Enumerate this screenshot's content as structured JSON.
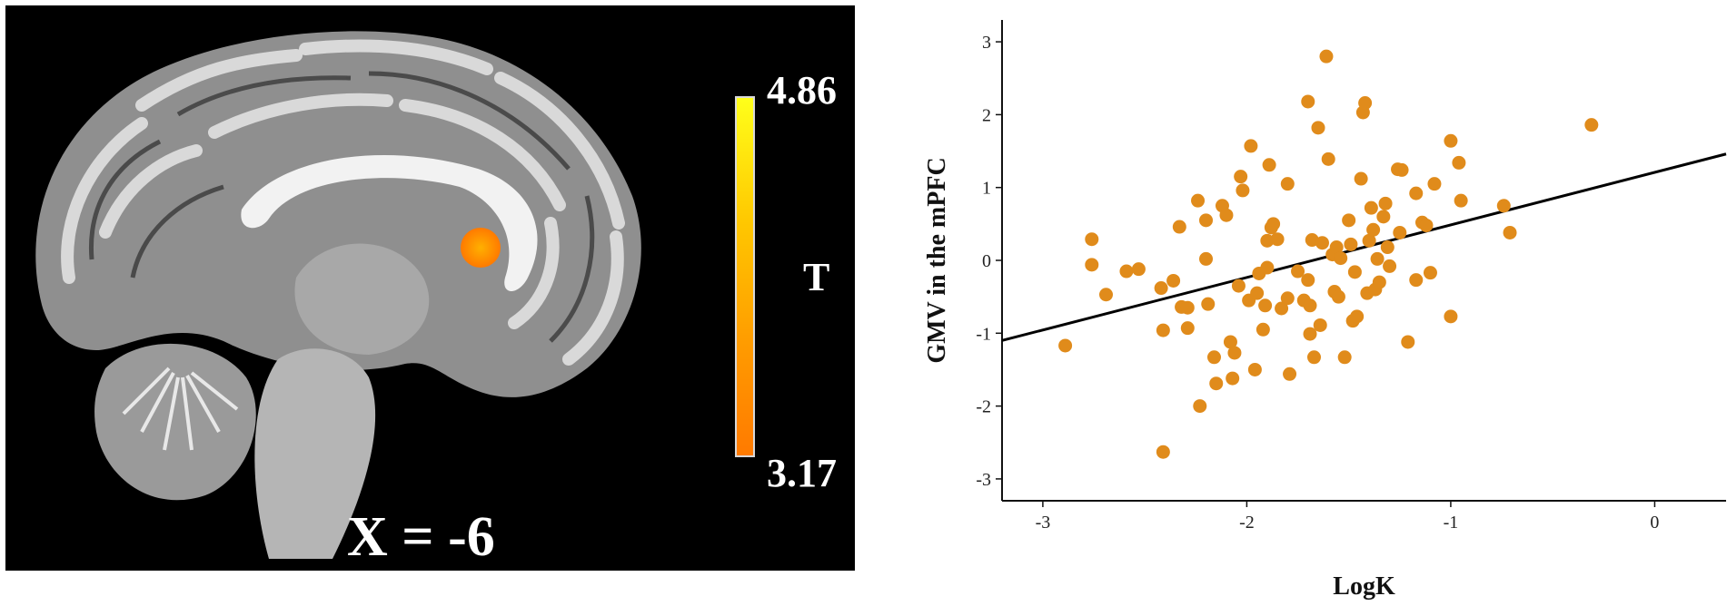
{
  "brain_panel": {
    "colorbar_max": "4.86",
    "colorbar_min": "3.17",
    "colorbar_label": "T",
    "slice_label": "X = -6",
    "colors": {
      "background": "#000000",
      "cluster": "#ff9a00",
      "colorbar_top": "#ffff1a",
      "colorbar_bottom": "#ff7a00"
    }
  },
  "chart_data": {
    "type": "scatter",
    "xlabel": "LogK",
    "ylabel": "GMV in the mPFC",
    "xlim": [
      -3.2,
      0.35
    ],
    "ylim": [
      -3.3,
      3.3
    ],
    "xticks": [
      -3,
      -2,
      -1,
      0
    ],
    "yticks": [
      3,
      2,
      1,
      0,
      -1,
      -2,
      -3
    ],
    "grid": false,
    "point_color": "#e08b1b",
    "fit_line": {
      "x": [
        -3.2,
        0.35
      ],
      "y": [
        -1.1,
        1.46
      ],
      "color": "#000000"
    },
    "points": [
      [
        -2.89,
        -1.17
      ],
      [
        -2.76,
        0.29
      ],
      [
        -2.76,
        -0.06
      ],
      [
        -2.69,
        -0.47
      ],
      [
        -2.59,
        -0.15
      ],
      [
        -2.53,
        -0.12
      ],
      [
        -2.42,
        -0.38
      ],
      [
        -2.41,
        -0.96
      ],
      [
        -2.41,
        -2.63
      ],
      [
        -2.36,
        -0.28
      ],
      [
        -2.33,
        0.46
      ],
      [
        -2.32,
        -0.64
      ],
      [
        -2.29,
        -0.93
      ],
      [
        -2.29,
        -0.65
      ],
      [
        -2.24,
        0.82
      ],
      [
        -2.23,
        -2.0
      ],
      [
        -2.2,
        0.55
      ],
      [
        -2.2,
        0.02
      ],
      [
        -2.19,
        -0.6
      ],
      [
        -2.16,
        -1.33
      ],
      [
        -2.15,
        -1.69
      ],
      [
        -2.12,
        0.75
      ],
      [
        -2.1,
        0.62
      ],
      [
        -2.08,
        -1.12
      ],
      [
        -2.07,
        -1.62
      ],
      [
        -2.06,
        -1.27
      ],
      [
        -2.04,
        -0.35
      ],
      [
        -2.03,
        1.15
      ],
      [
        -2.02,
        0.96
      ],
      [
        -1.99,
        -0.55
      ],
      [
        -1.98,
        1.57
      ],
      [
        -1.96,
        -1.5
      ],
      [
        -1.95,
        -0.45
      ],
      [
        -1.94,
        -0.18
      ],
      [
        -1.92,
        -0.95
      ],
      [
        -1.91,
        -0.62
      ],
      [
        -1.9,
        0.27
      ],
      [
        -1.9,
        -0.1
      ],
      [
        -1.89,
        1.31
      ],
      [
        -1.88,
        0.45
      ],
      [
        -1.87,
        0.5
      ],
      [
        -1.85,
        0.29
      ],
      [
        -1.83,
        -0.66
      ],
      [
        -1.8,
        1.05
      ],
      [
        -1.8,
        -0.52
      ],
      [
        -1.79,
        -1.56
      ],
      [
        -1.75,
        -0.15
      ],
      [
        -1.72,
        -0.55
      ],
      [
        -1.7,
        2.18
      ],
      [
        -1.7,
        -0.27
      ],
      [
        -1.69,
        -1.01
      ],
      [
        -1.69,
        -0.62
      ],
      [
        -1.68,
        0.28
      ],
      [
        -1.67,
        -1.33
      ],
      [
        -1.65,
        1.82
      ],
      [
        -1.64,
        -0.89
      ],
      [
        -1.63,
        0.24
      ],
      [
        -1.61,
        2.8
      ],
      [
        -1.6,
        1.39
      ],
      [
        -1.58,
        0.08
      ],
      [
        -1.57,
        -0.43
      ],
      [
        -1.56,
        0.18
      ],
      [
        -1.55,
        -0.5
      ],
      [
        -1.54,
        0.03
      ],
      [
        -1.52,
        -1.33
      ],
      [
        -1.5,
        0.55
      ],
      [
        -1.49,
        0.22
      ],
      [
        -1.48,
        -0.83
      ],
      [
        -1.47,
        -0.16
      ],
      [
        -1.46,
        -0.77
      ],
      [
        -1.44,
        1.12
      ],
      [
        -1.43,
        2.03
      ],
      [
        -1.42,
        2.16
      ],
      [
        -1.41,
        -0.45
      ],
      [
        -1.4,
        0.27
      ],
      [
        -1.39,
        0.72
      ],
      [
        -1.38,
        0.42
      ],
      [
        -1.37,
        -0.4
      ],
      [
        -1.36,
        0.02
      ],
      [
        -1.35,
        -0.3
      ],
      [
        -1.33,
        0.6
      ],
      [
        -1.32,
        0.78
      ],
      [
        -1.31,
        0.18
      ],
      [
        -1.3,
        -0.08
      ],
      [
        -1.26,
        1.25
      ],
      [
        -1.25,
        0.38
      ],
      [
        -1.24,
        1.24
      ],
      [
        -1.21,
        -1.12
      ],
      [
        -1.17,
        0.92
      ],
      [
        -1.17,
        -0.27
      ],
      [
        -1.14,
        0.52
      ],
      [
        -1.12,
        0.48
      ],
      [
        -1.1,
        -0.17
      ],
      [
        -1.08,
        1.05
      ],
      [
        -1.0,
        -0.77
      ],
      [
        -1.0,
        1.64
      ],
      [
        -0.96,
        1.34
      ],
      [
        -0.95,
        0.82
      ],
      [
        -0.74,
        0.75
      ],
      [
        -0.71,
        0.38
      ],
      [
        -0.31,
        1.86
      ]
    ]
  }
}
